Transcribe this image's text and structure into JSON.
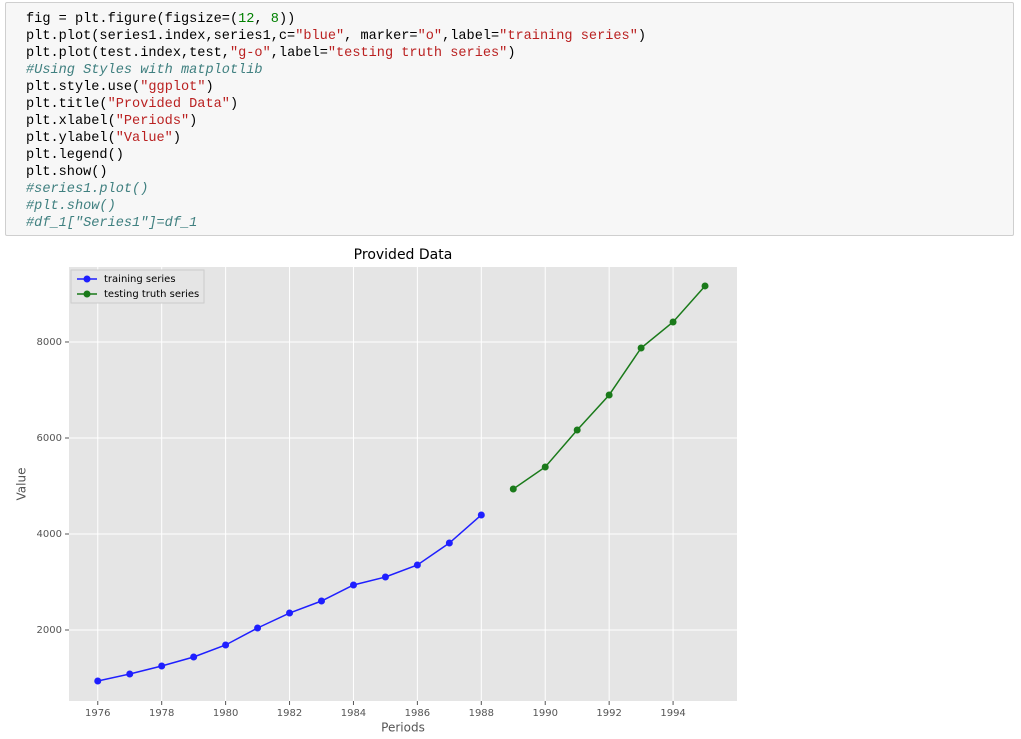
{
  "code": {
    "lines": [
      "fig = plt.figure(figsize=(12, 8))",
      "plt.plot(series1.index,series1,c=\"blue\", marker=\"o\",label=\"training series\")",
      "plt.plot(test.index,test,\"g-o\",label=\"testing truth series\")",
      "#Using Styles with matplotlib",
      "plt.style.use(\"ggplot\")",
      "plt.title(\"Provided Data\")",
      "plt.xlabel(\"Periods\")",
      "plt.ylabel(\"Value\")",
      "plt.legend()",
      "plt.show()",
      "#series1.plot()",
      "#plt.show()",
      "#df_1[\"Series1\"]=df_1"
    ]
  },
  "chart_data": {
    "type": "line",
    "title": "Provided Data",
    "x_label": "Periods",
    "y_label": "Value",
    "series": [
      {
        "name": "training series",
        "color": "#1f1fff",
        "x": [
          1976,
          1977,
          1978,
          1979,
          1980,
          1981,
          1982,
          1983,
          1984,
          1985,
          1986,
          1987,
          1988
        ],
        "values": [
          938,
          1083,
          1250,
          1438,
          1688,
          2042,
          2354,
          2604,
          2938,
          3104,
          3354,
          3812,
          4396
        ]
      },
      {
        "name": "testing truth series",
        "color": "#1a7a1a",
        "x": [
          1989,
          1990,
          1991,
          1992,
          1993,
          1994,
          1995
        ],
        "values": [
          4938,
          5396,
          6167,
          6896,
          7875,
          8417,
          9167
        ]
      }
    ],
    "xlim": [
      1975.1,
      1996.0
    ],
    "ylim": [
      521,
      9562
    ],
    "xticks": [
      1976,
      1978,
      1980,
      1982,
      1984,
      1986,
      1988,
      1990,
      1992,
      1994
    ],
    "yticks": [
      2000,
      4000,
      6000,
      8000
    ],
    "grid": true,
    "legend": "upper left"
  }
}
